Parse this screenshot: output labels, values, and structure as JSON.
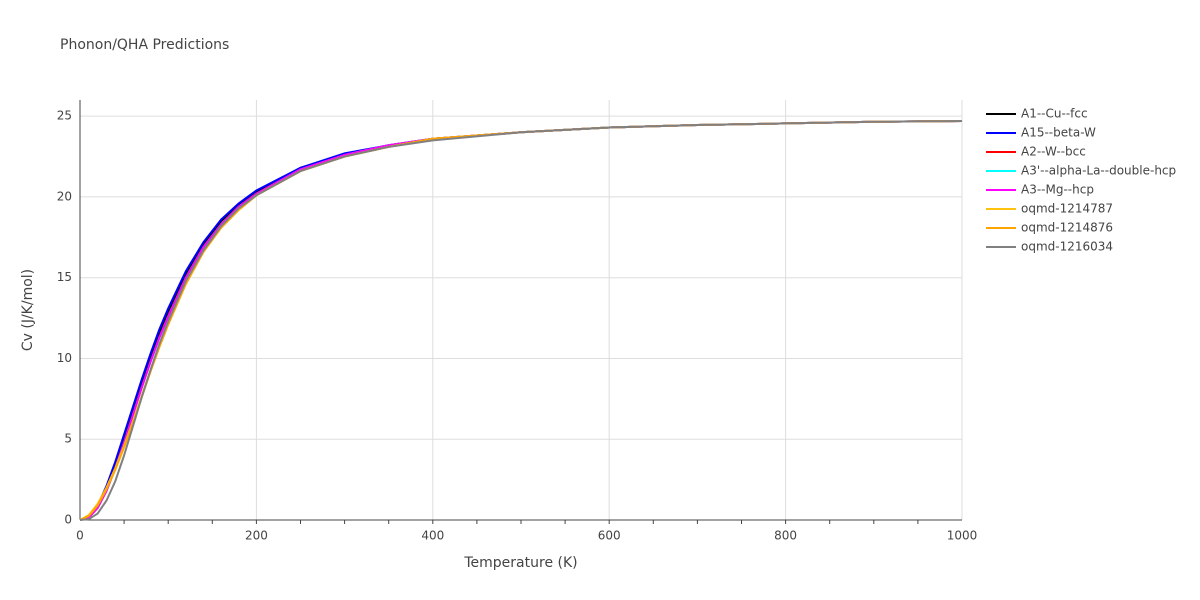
{
  "chart_data": {
    "type": "line",
    "title": "Phonon/QHA Predictions",
    "x_label": "Temperature (K)",
    "y_label": "Cv (J/K/mol)",
    "x": [
      0,
      10,
      20,
      30,
      40,
      50,
      60,
      70,
      80,
      90,
      100,
      120,
      140,
      160,
      180,
      200,
      250,
      300,
      350,
      400,
      500,
      600,
      700,
      800,
      900,
      1000
    ],
    "xlim": [
      0,
      1000
    ],
    "xticks": [
      0,
      200,
      400,
      600,
      800,
      1000
    ],
    "ylim": [
      0,
      26
    ],
    "yticks": [
      0,
      5,
      10,
      15,
      20,
      25
    ],
    "grid": true,
    "legend": "right",
    "series": [
      {
        "name": "A1--Cu--fcc",
        "color": "#000000",
        "values": [
          0,
          0.2,
          0.85,
          2.0,
          3.4,
          5.1,
          6.8,
          8.5,
          10.1,
          11.6,
          12.9,
          15.2,
          17.1,
          18.5,
          19.5,
          20.3,
          21.8,
          22.6,
          23.2,
          23.6,
          24.0,
          24.3,
          24.45,
          24.55,
          24.65,
          24.7
        ]
      },
      {
        "name": "A15--beta-W",
        "color": "#0000ff",
        "values": [
          0,
          0.2,
          0.9,
          2.1,
          3.6,
          5.3,
          7.0,
          8.7,
          10.3,
          11.8,
          13.1,
          15.4,
          17.2,
          18.6,
          19.6,
          20.4,
          21.8,
          22.7,
          23.2,
          23.6,
          24.0,
          24.3,
          24.45,
          24.55,
          24.65,
          24.7
        ]
      },
      {
        "name": "A2--W--bcc",
        "color": "#ff0000",
        "values": [
          0,
          0.15,
          0.75,
          1.8,
          3.2,
          4.8,
          6.5,
          8.2,
          9.8,
          11.3,
          12.6,
          15.0,
          16.9,
          18.3,
          19.4,
          20.2,
          21.7,
          22.6,
          23.2,
          23.6,
          24.0,
          24.3,
          24.45,
          24.55,
          24.65,
          24.7
        ]
      },
      {
        "name": "A3'--alpha-La--double-hcp",
        "color": "#00ffff",
        "values": [
          0,
          0.15,
          0.75,
          1.8,
          3.2,
          4.8,
          6.5,
          8.2,
          9.8,
          11.3,
          12.6,
          15.0,
          16.9,
          18.3,
          19.4,
          20.2,
          21.7,
          22.6,
          23.2,
          23.6,
          24.0,
          24.3,
          24.45,
          24.55,
          24.65,
          24.7
        ]
      },
      {
        "name": "A3--Mg--hcp",
        "color": "#ff00ff",
        "values": [
          0,
          0.15,
          0.75,
          1.8,
          3.2,
          4.8,
          6.5,
          8.2,
          9.8,
          11.3,
          12.6,
          15.0,
          16.9,
          18.3,
          19.4,
          20.2,
          21.7,
          22.6,
          23.2,
          23.6,
          24.0,
          24.3,
          24.45,
          24.55,
          24.65,
          24.7
        ]
      },
      {
        "name": "oqmd-1214787",
        "color": "#ffc20e",
        "values": [
          0,
          0.3,
          1.0,
          2.0,
          3.2,
          4.6,
          6.1,
          7.7,
          9.3,
          10.8,
          12.2,
          14.7,
          16.6,
          18.1,
          19.2,
          20.1,
          21.6,
          22.5,
          23.1,
          23.6,
          24.0,
          24.3,
          24.45,
          24.55,
          24.65,
          24.7
        ]
      },
      {
        "name": "oqmd-1214876",
        "color": "#ffa500",
        "values": [
          0,
          0.25,
          0.9,
          1.9,
          3.1,
          4.5,
          6.0,
          7.6,
          9.2,
          10.7,
          12.1,
          14.6,
          16.6,
          18.1,
          19.2,
          20.1,
          21.6,
          22.5,
          23.1,
          23.6,
          24.0,
          24.3,
          24.45,
          24.55,
          24.65,
          24.7
        ]
      },
      {
        "name": "oqmd-1216034",
        "color": "#808080",
        "values": [
          0,
          0.05,
          0.4,
          1.2,
          2.4,
          4.0,
          5.8,
          7.6,
          9.3,
          10.9,
          12.3,
          14.8,
          16.7,
          18.2,
          19.3,
          20.1,
          21.6,
          22.5,
          23.1,
          23.5,
          24.0,
          24.3,
          24.45,
          24.55,
          24.65,
          24.7
        ]
      }
    ]
  }
}
